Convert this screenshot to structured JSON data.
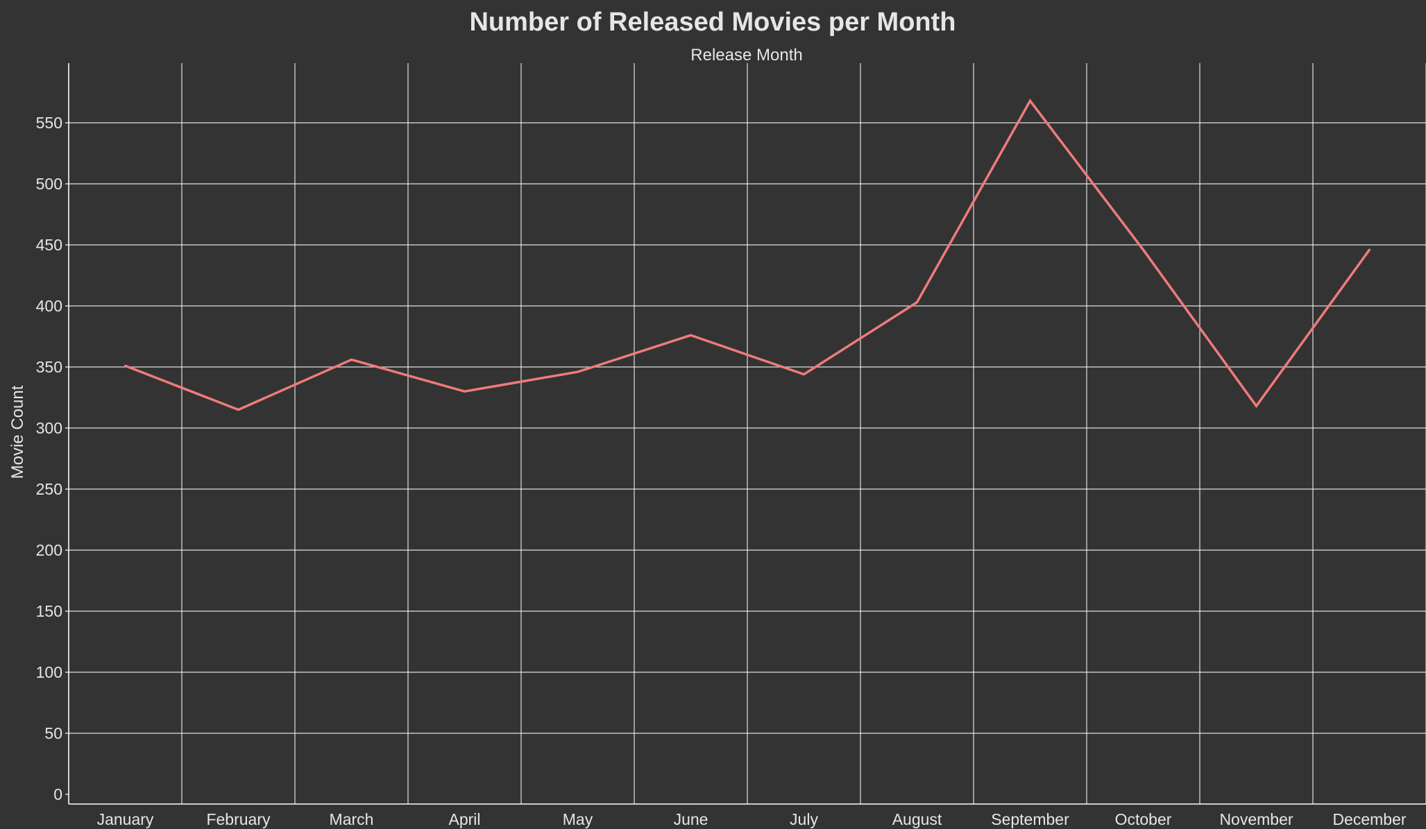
{
  "chart_data": {
    "type": "line",
    "title": "Number of Released Movies per Month",
    "xlabel": "Release Month",
    "ylabel": "Movie Count",
    "categories": [
      "January",
      "February",
      "March",
      "April",
      "May",
      "June",
      "July",
      "August",
      "September",
      "October",
      "November",
      "December"
    ],
    "series": [
      {
        "values": [
          351,
          315,
          356,
          330,
          346,
          376,
          344,
          403,
          568,
          446,
          318,
          446
        ]
      }
    ],
    "yticks": [
      0,
      50,
      100,
      150,
      200,
      250,
      300,
      350,
      400,
      450,
      500,
      550
    ],
    "ylim": [
      0,
      600
    ],
    "xaxis_position": "top and bottom labels: title on top, category labels at bottom",
    "grid": true,
    "colors": {
      "background": "#333333",
      "line": "#f07b7b",
      "grid": "#ffffff",
      "text": "#e6e6e6"
    }
  }
}
